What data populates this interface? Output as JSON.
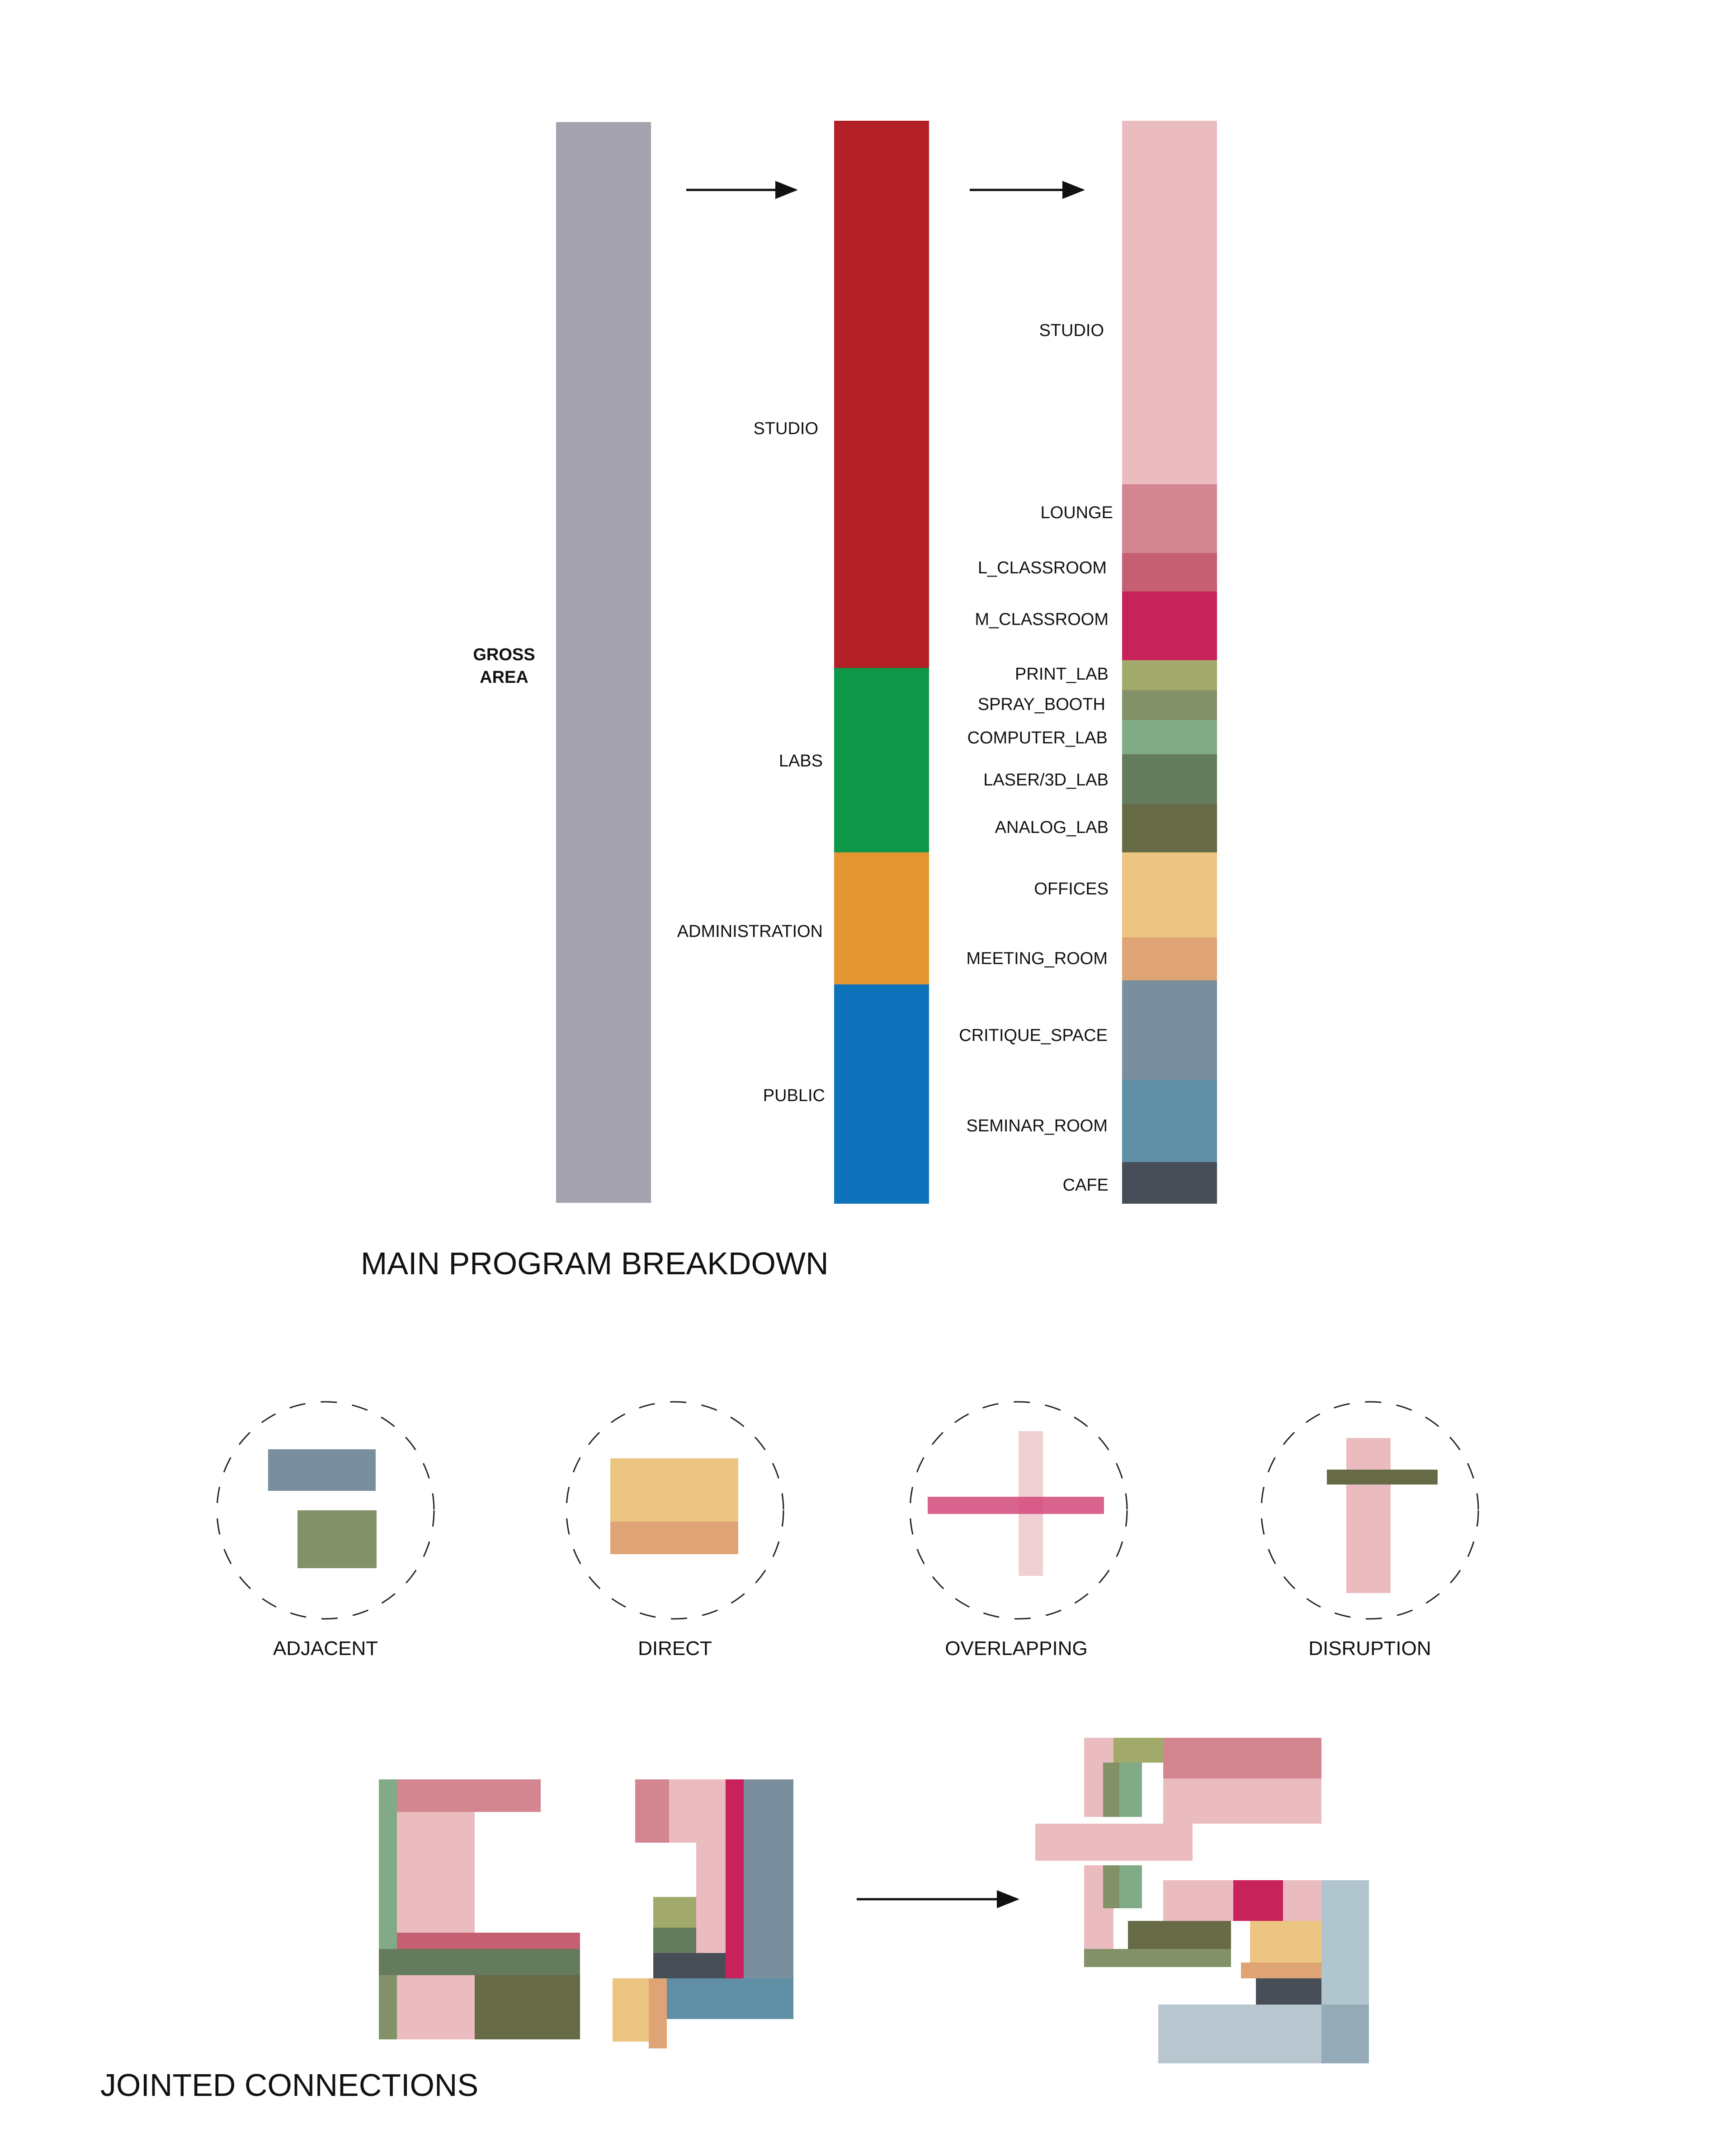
{
  "breakdown": {
    "title": "MAIN PROGRAM BREAKDOWN",
    "gross": {
      "label_line1": "GROSS",
      "label_line2": "AREA",
      "color": "#a4a2ad"
    },
    "categories": [
      {
        "name": "STUDIO",
        "color": "#b32127"
      },
      {
        "name": "LABS",
        "color": "#0e9748"
      },
      {
        "name": "ADMINISTRATION",
        "color": "#e49631"
      },
      {
        "name": "PUBLIC",
        "color": "#0f73bc"
      }
    ],
    "spaces": [
      {
        "name": "STUDIO",
        "color": "#eabcbf"
      },
      {
        "name": "LOUNGE",
        "color": "#d38690"
      },
      {
        "name": "L_CLASSROOM",
        "color": "#c65f72"
      },
      {
        "name": "M_CLASSROOM",
        "color": "#c72259"
      },
      {
        "name": "PRINT_LAB",
        "color": "#a2aa6b"
      },
      {
        "name": "SPRAY_BOOTH",
        "color": "#839168"
      },
      {
        "name": "COMPUTER_LAB",
        "color": "#81aa86"
      },
      {
        "name": "LASER/3D_LAB",
        "color": "#647b5d"
      },
      {
        "name": "ANALOG_LAB",
        "color": "#666a45"
      },
      {
        "name": "OFFICES",
        "color": "#ecc582"
      },
      {
        "name": "MEETING_ROOM",
        "color": "#dfa475"
      },
      {
        "name": "CRITIQUE_SPACE",
        "color": "#7a8f9e"
      },
      {
        "name": "SEMINAR_ROOM",
        "color": "#5f8ea5"
      },
      {
        "name": "CAFE",
        "color": "#474e58"
      }
    ]
  },
  "connections": {
    "items": [
      {
        "label": "ADJACENT"
      },
      {
        "label": "DIRECT"
      },
      {
        "label": "OVERLAPPING"
      },
      {
        "label": "DISRUPTION"
      }
    ]
  },
  "jointed": {
    "title": "JOINTED CONNECTIONS"
  }
}
